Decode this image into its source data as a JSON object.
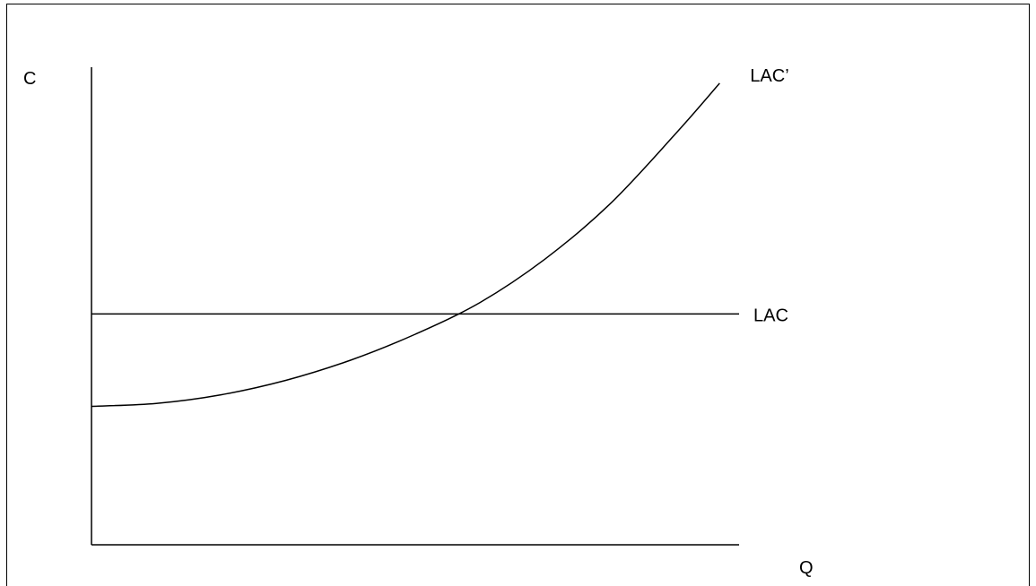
{
  "chart_data": {
    "type": "line",
    "title": "",
    "xlabel": "Q",
    "ylabel": "C",
    "grid": false,
    "legend": "none",
    "series": [
      {
        "name": "LAC",
        "shape": "horizontal",
        "x": [
          0,
          10
        ],
        "y": [
          4,
          4
        ]
      },
      {
        "name": "LAC’",
        "shape": "convex-increasing",
        "x": [
          0,
          1,
          2,
          3,
          4,
          5,
          6,
          7,
          8,
          9,
          9.7
        ],
        "y": [
          2.4,
          2.45,
          2.6,
          2.85,
          3.2,
          3.65,
          4.2,
          4.95,
          5.9,
          7.1,
          8
        ]
      }
    ]
  },
  "colors": {
    "line": "#000000",
    "background": "#ffffff",
    "border": "#000000"
  }
}
